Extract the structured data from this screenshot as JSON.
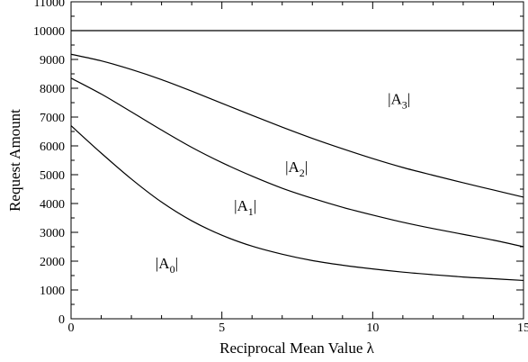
{
  "chart_data": {
    "type": "line",
    "xlabel": "Reciprocal Mean Value λ",
    "ylabel": "Request Amount",
    "xlim": [
      0,
      15
    ],
    "ylim": [
      0,
      11000
    ],
    "xticks": [
      0,
      5,
      10,
      15
    ],
    "yticks": [
      0,
      1000,
      2000,
      3000,
      4000,
      5000,
      6000,
      7000,
      8000,
      9000,
      10000,
      11000
    ],
    "grid": false,
    "series": [
      {
        "x": [
          0,
          1,
          2,
          3,
          4,
          5,
          6,
          7,
          8,
          9,
          10,
          11,
          12,
          13,
          14,
          15
        ],
        "y": [
          10000,
          10000,
          10000,
          10000,
          10000,
          10000,
          10000,
          10000,
          10000,
          10000,
          10000,
          10000,
          10000,
          10000,
          10000,
          10000
        ]
      },
      {
        "x": [
          0,
          1,
          2,
          3,
          4,
          5,
          6,
          7,
          8,
          9,
          10,
          11,
          12,
          13,
          14,
          15
        ],
        "y": [
          9180,
          8950,
          8650,
          8300,
          7900,
          7480,
          7060,
          6650,
          6260,
          5900,
          5560,
          5250,
          4980,
          4720,
          4470,
          4220
        ]
      },
      {
        "x": [
          0,
          1,
          2,
          3,
          4,
          5,
          6,
          7,
          8,
          9,
          10,
          11,
          12,
          13,
          14,
          15
        ],
        "y": [
          8350,
          7800,
          7180,
          6550,
          5950,
          5420,
          4950,
          4530,
          4180,
          3870,
          3600,
          3350,
          3130,
          2930,
          2730,
          2500
        ]
      },
      {
        "x": [
          0,
          1,
          2,
          3,
          4,
          5,
          6,
          7,
          8,
          9,
          10,
          11,
          12,
          13,
          14,
          15
        ],
        "y": [
          6700,
          5750,
          4850,
          4050,
          3400,
          2900,
          2520,
          2240,
          2020,
          1860,
          1730,
          1620,
          1530,
          1450,
          1390,
          1330
        ]
      }
    ],
    "annotations": [
      {
        "base": "|A",
        "sub": "3",
        "end": "|",
        "x": 10.5,
        "y": 7450
      },
      {
        "base": "|A",
        "sub": "2",
        "end": "|",
        "x": 7.1,
        "y": 5100
      },
      {
        "base": "|A",
        "sub": "1",
        "end": "|",
        "x": 5.4,
        "y": 3750
      },
      {
        "base": "|A",
        "sub": "0",
        "end": "|",
        "x": 2.8,
        "y": 1750
      }
    ]
  }
}
